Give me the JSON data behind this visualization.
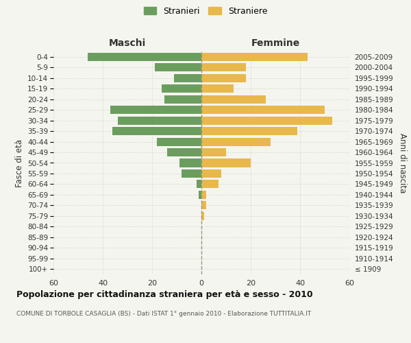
{
  "age_groups": [
    "100+",
    "95-99",
    "90-94",
    "85-89",
    "80-84",
    "75-79",
    "70-74",
    "65-69",
    "60-64",
    "55-59",
    "50-54",
    "45-49",
    "40-44",
    "35-39",
    "30-34",
    "25-29",
    "20-24",
    "15-19",
    "10-14",
    "5-9",
    "0-4"
  ],
  "birth_years": [
    "≤ 1909",
    "1910-1914",
    "1915-1919",
    "1920-1924",
    "1925-1929",
    "1930-1934",
    "1935-1939",
    "1940-1944",
    "1945-1949",
    "1950-1954",
    "1955-1959",
    "1960-1964",
    "1965-1969",
    "1970-1974",
    "1975-1979",
    "1980-1984",
    "1985-1989",
    "1990-1994",
    "1995-1999",
    "2000-2004",
    "2005-2009"
  ],
  "males": [
    0,
    0,
    0,
    0,
    0,
    0,
    0,
    1,
    2,
    8,
    9,
    14,
    18,
    36,
    34,
    37,
    15,
    16,
    11,
    19,
    46
  ],
  "females": [
    0,
    0,
    0,
    0,
    0,
    1,
    2,
    2,
    7,
    8,
    20,
    10,
    28,
    39,
    53,
    50,
    26,
    13,
    18,
    18,
    43
  ],
  "male_color": "#6b9e5e",
  "female_color": "#e8b84b",
  "background_color": "#f5f5f0",
  "grid_color": "#d0d0c8",
  "center_line_color": "#aaaaaa",
  "title": "Popolazione per cittadinanza straniera per età e sesso - 2010",
  "subtitle": "COMUNE DI TORBOLE CASAGLIA (BS) - Dati ISTAT 1° gennaio 2010 - Elaborazione TUTTITALIA.IT",
  "xlabel_left": "Maschi",
  "xlabel_right": "Femmine",
  "ylabel_left": "Fasce di età",
  "ylabel_right": "Anni di nascita",
  "legend_male": "Stranieri",
  "legend_female": "Straniere",
  "xlim": 60
}
